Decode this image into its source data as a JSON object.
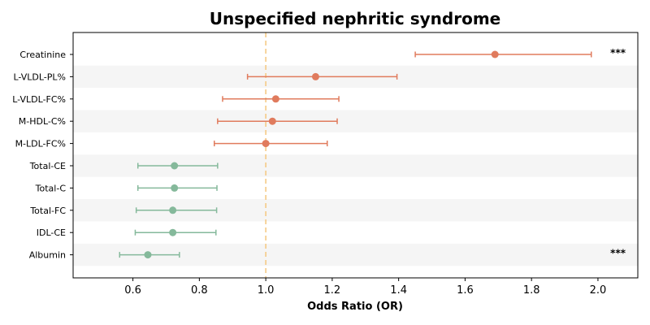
{
  "chart_data": {
    "type": "forest",
    "title": "Unspecified nephritic syndrome",
    "xlabel": "Odds Ratio (OR)",
    "ylabel": "",
    "xlim": [
      0.42,
      2.12
    ],
    "xticks": [
      "0.6",
      "0.8",
      "1.0",
      "1.2",
      "1.4",
      "1.6",
      "1.8",
      "2.0"
    ],
    "reference_line": 1.0,
    "grid": false,
    "alternating_row_shading": true,
    "colors": {
      "risk": "#e07b5d",
      "protective": "#85b99b",
      "reference_line": "#f5c77e",
      "row_shade": "#f5f5f5",
      "axis": "#000000"
    },
    "rows": [
      {
        "label": "Creatinine",
        "or": 1.69,
        "ci_low": 1.45,
        "ci_high": 1.98,
        "significance": "***",
        "group": "risk"
      },
      {
        "label": "L-VLDL-PL%",
        "or": 1.15,
        "ci_low": 0.945,
        "ci_high": 1.395,
        "significance": "",
        "group": "risk"
      },
      {
        "label": "L-VLDL-FC%",
        "or": 1.03,
        "ci_low": 0.87,
        "ci_high": 1.22,
        "significance": "",
        "group": "risk"
      },
      {
        "label": "M-HDL-C%",
        "or": 1.02,
        "ci_low": 0.855,
        "ci_high": 1.215,
        "significance": "",
        "group": "risk"
      },
      {
        "label": "M-LDL-FC%",
        "or": 1.0,
        "ci_low": 0.845,
        "ci_high": 1.185,
        "significance": "",
        "group": "risk"
      },
      {
        "label": "Total-CE",
        "or": 0.725,
        "ci_low": 0.615,
        "ci_high": 0.855,
        "significance": "",
        "group": "protective"
      },
      {
        "label": "Total-C",
        "or": 0.725,
        "ci_low": 0.615,
        "ci_high": 0.853,
        "significance": "",
        "group": "protective"
      },
      {
        "label": "Total-FC",
        "or": 0.72,
        "ci_low": 0.61,
        "ci_high": 0.852,
        "significance": "",
        "group": "protective"
      },
      {
        "label": "IDL-CE",
        "or": 0.72,
        "ci_low": 0.607,
        "ci_high": 0.85,
        "significance": "",
        "group": "protective"
      },
      {
        "label": "Albumin",
        "or": 0.645,
        "ci_low": 0.56,
        "ci_high": 0.74,
        "significance": "***",
        "group": "protective"
      }
    ]
  }
}
